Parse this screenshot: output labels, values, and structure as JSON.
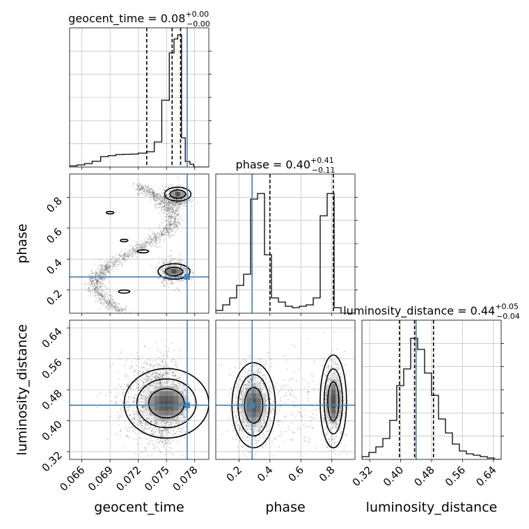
{
  "colors": {
    "truth": "#4682b4",
    "hist": "#000000",
    "quantile": "#000000",
    "grid": "#b0b0b0"
  },
  "chart_data": {
    "type": "corner",
    "parameters": [
      "geocent_time",
      "phase",
      "luminosity_distance"
    ],
    "truths": [
      0.0772,
      0.285,
      0.44
    ],
    "titles": [
      {
        "base": "geocent_time = 0.08",
        "sup": "+0.00",
        "sub": "−0.00"
      },
      {
        "base": "phase = 0.40",
        "sup": "+0.41",
        "sub": "−0.11"
      },
      {
        "base": "luminosity_distance = 0.44",
        "sup": "+0.05",
        "sub": "−0.04"
      }
    ],
    "ranges": [
      [
        0.0647,
        0.0795
      ],
      [
        0.05,
        0.95
      ],
      [
        0.3,
        0.66
      ]
    ],
    "ticks": [
      {
        "values": [
          0.066,
          0.069,
          0.072,
          0.075,
          0.078
        ],
        "labels": [
          "0.066",
          "0.069",
          "0.072",
          "0.075",
          "0.078"
        ]
      },
      {
        "values": [
          0.2,
          0.4,
          0.6,
          0.8
        ],
        "labels": [
          "0.2",
          "0.4",
          "0.6",
          "0.8"
        ]
      },
      {
        "values": [
          0.32,
          0.4,
          0.48,
          0.56,
          0.64
        ],
        "labels": [
          "0.32",
          "0.40",
          "0.48",
          "0.56",
          "0.64"
        ]
      }
    ],
    "histograms": [
      {
        "quantiles": [
          0.0729,
          0.0756,
          0.0765
        ],
        "edges": [
          0.0647,
          0.0655,
          0.0663,
          0.0671,
          0.068,
          0.0688,
          0.0696,
          0.0704,
          0.0712,
          0.072,
          0.0729,
          0.0737,
          0.0745,
          0.0753,
          0.0758,
          0.0762,
          0.0766,
          0.077,
          0.0775,
          0.0779,
          0.0795
        ],
        "counts": [
          0.008,
          0.015,
          0.025,
          0.042,
          0.075,
          0.082,
          0.09,
          0.092,
          0.093,
          0.1,
          0.11,
          0.18,
          0.48,
          0.82,
          0.92,
          0.95,
          0.21,
          0.04,
          0.02,
          0.0
        ]
      },
      {
        "quantiles": [
          0.285,
          0.4,
          0.81
        ],
        "edges": [
          0.05,
          0.095,
          0.14,
          0.185,
          0.23,
          0.275,
          0.32,
          0.365,
          0.41,
          0.455,
          0.5,
          0.545,
          0.59,
          0.635,
          0.68,
          0.725,
          0.77,
          0.815,
          0.86,
          0.905,
          0.95
        ],
        "counts": [
          0.02,
          0.06,
          0.11,
          0.2,
          0.28,
          0.82,
          0.86,
          0.42,
          0.11,
          0.08,
          0.05,
          0.04,
          0.05,
          0.06,
          0.11,
          0.7,
          0.86,
          0.04,
          0.0,
          0.0
        ]
      },
      {
        "quantiles": [
          0.397,
          0.436,
          0.485
        ],
        "edges": [
          0.3,
          0.318,
          0.336,
          0.354,
          0.372,
          0.39,
          0.408,
          0.426,
          0.444,
          0.462,
          0.48,
          0.498,
          0.516,
          0.534,
          0.552,
          0.57,
          0.588,
          0.606,
          0.624,
          0.642,
          0.66
        ],
        "counts": [
          0.02,
          0.05,
          0.09,
          0.15,
          0.28,
          0.53,
          0.65,
          0.87,
          0.79,
          0.62,
          0.46,
          0.29,
          0.19,
          0.11,
          0.06,
          0.04,
          0.03,
          0.02,
          0.01,
          0.0
        ]
      }
    ]
  }
}
